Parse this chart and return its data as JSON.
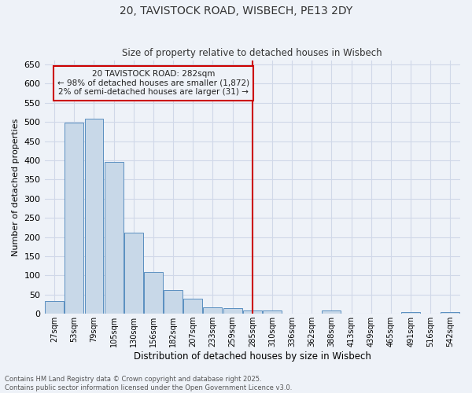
{
  "title_line1": "20, TAVISTOCK ROAD, WISBECH, PE13 2DY",
  "title_line2": "Size of property relative to detached houses in Wisbech",
  "xlabel": "Distribution of detached houses by size in Wisbech",
  "ylabel": "Number of detached properties",
  "footer_line1": "Contains HM Land Registry data © Crown copyright and database right 2025.",
  "footer_line2": "Contains public sector information licensed under the Open Government Licence v3.0.",
  "bin_labels": [
    "27sqm",
    "53sqm",
    "79sqm",
    "105sqm",
    "130sqm",
    "156sqm",
    "182sqm",
    "207sqm",
    "233sqm",
    "259sqm",
    "285sqm",
    "310sqm",
    "336sqm",
    "362sqm",
    "388sqm",
    "413sqm",
    "439sqm",
    "465sqm",
    "491sqm",
    "516sqm",
    "542sqm"
  ],
  "bar_values": [
    33,
    499,
    508,
    395,
    212,
    110,
    62,
    40,
    16,
    14,
    8,
    9,
    0,
    0,
    8,
    0,
    0,
    0,
    4,
    0,
    5
  ],
  "bar_color": "#c8d8e8",
  "bar_edge_color": "#5a8fc0",
  "grid_color": "#d0d8e8",
  "bg_color": "#eef2f8",
  "vline_x_index": 10.0,
  "vline_color": "#cc0000",
  "annotation_text": "20 TAVISTOCK ROAD: 282sqm\n← 98% of detached houses are smaller (1,872)\n2% of semi-detached houses are larger (31) →",
  "annotation_box_color": "#cc0000",
  "ylim": [
    0,
    660
  ],
  "yticks": [
    0,
    50,
    100,
    150,
    200,
    250,
    300,
    350,
    400,
    450,
    500,
    550,
    600,
    650
  ]
}
